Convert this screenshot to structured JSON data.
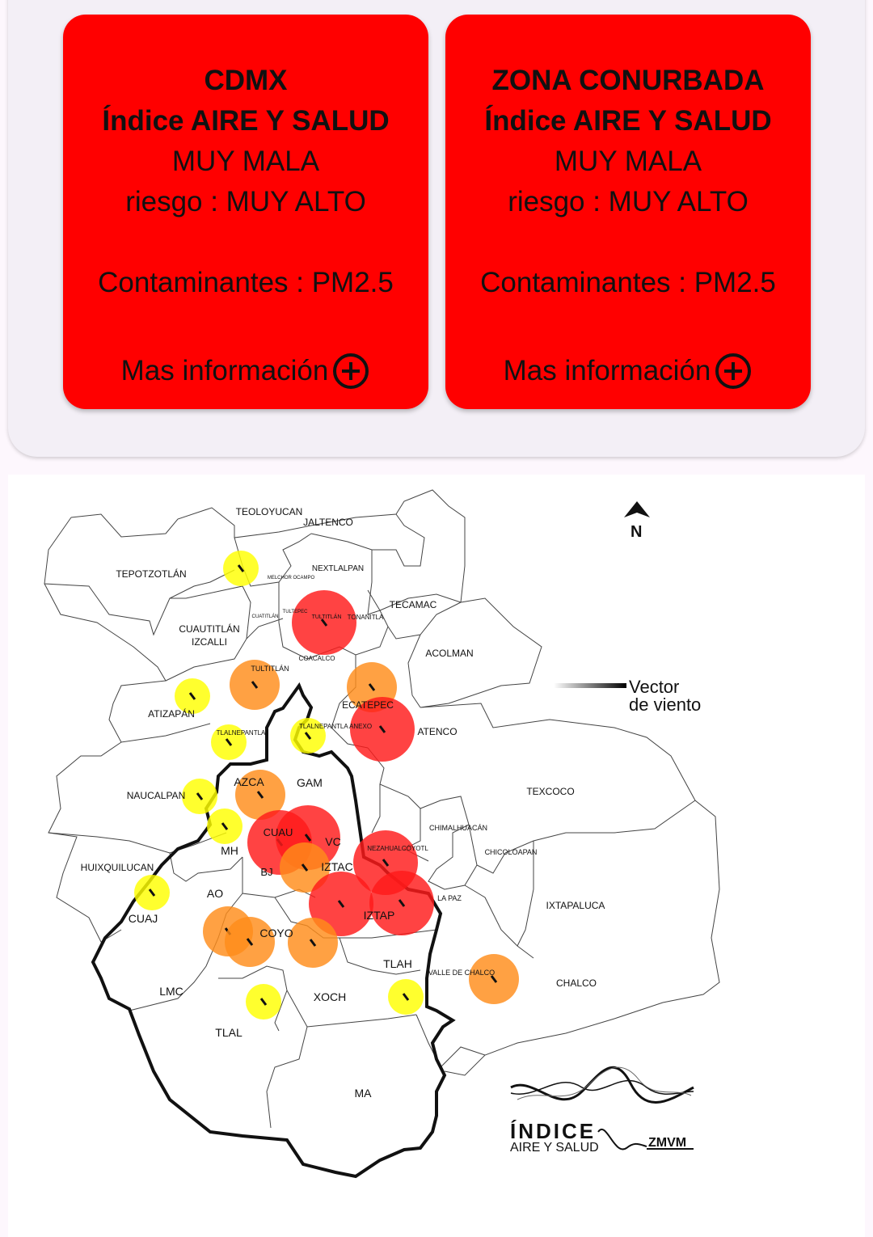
{
  "cards": [
    {
      "region": "CDMX",
      "index_name": "Índice AIRE Y SALUD",
      "quality": "MUY MALA",
      "risk": "riesgo : MUY ALTO",
      "pollutants": "Contaminantes : PM2.5",
      "more_label": "Mas información",
      "color": "#ff0000"
    },
    {
      "region": "ZONA CONURBADA",
      "index_name": "Índice AIRE Y SALUD",
      "quality": "MUY MALA",
      "risk": "riesgo : MUY ALTO",
      "pollutants": "Contaminantes : PM2.5",
      "more_label": "Mas información",
      "color": "#ff0000"
    }
  ],
  "map": {
    "north_label": "N",
    "wind_legend": [
      "Vector",
      "de viento"
    ],
    "logo": {
      "line1": "ÍNDICE",
      "line2": "AIRE Y SALUD",
      "line3": "ZMVM"
    },
    "colors": {
      "very_bad": "#ff1a1a",
      "bad": "#ff8c1a",
      "regular": "#ffff00"
    },
    "labels": {
      "teoloyucan": "TEOLOYUCAN",
      "jaltenco": "JALTENCO",
      "tepotzotlan": "TEPOTZOTLÁN",
      "nextlalpan": "NEXTLALPAN",
      "melchor": "MELCHOR OCAMPO",
      "tecamac": "TECAMAC",
      "cuautitlan_izcalli_1": "CUAUTITLÁN",
      "cuautitlan_izcalli_2": "IZCALLI",
      "cuautitlan": "CUATITLÁN",
      "tultepec": "TULTEPEC",
      "tultitlan": "TULTITLÁN",
      "tonanitla": "TONANITLA",
      "acolman": "ACOLMAN",
      "coacalco": "COACALCO",
      "tultitlan2": "TULTITLÁN",
      "ecatepec": "ECATEPEC",
      "atizapan": "ATIZAPÁN",
      "tlalnepantla": "TLALNEPANTLA",
      "tlalnepantla_anexo": "TLALNEPANTLA ANEXO",
      "atenco": "ATENCO",
      "azca": "AZCA",
      "gam": "GAM",
      "texcoco": "TEXCOCO",
      "naucalpan": "NAUCALPAN",
      "chimalhuacan": "CHIMALHUACÁN",
      "cuau": "CUAU",
      "vc": "VC",
      "nezahualcoyotl": "NEZAHUALCÓYOTL",
      "chicoloapan": "CHICOLOAPAN",
      "mh": "MH",
      "huixquilucan": "HUIXQUILUCAN",
      "bj": "BJ",
      "iztac": "IZTAC",
      "ao": "AO",
      "la_paz": "LA PAZ",
      "ixtapaluca": "IXTAPALUCA",
      "iztap": "IZTAP",
      "cuaj": "CUAJ",
      "coyo": "COYO",
      "tlah": "TLAH",
      "valle_chalco": "VALLE DE CHALCO",
      "chalco": "CHALCO",
      "lmc": "LMC",
      "xoch": "XOCH",
      "tlal": "TLAL",
      "ma": "MA"
    },
    "stations": [
      {
        "id": "tepotzotlan",
        "level": "regular"
      },
      {
        "id": "tultitlan",
        "level": "very_bad"
      },
      {
        "id": "tultitlan-sur",
        "level": "bad"
      },
      {
        "id": "ecatepec-norte",
        "level": "bad"
      },
      {
        "id": "ecatepec",
        "level": "very_bad"
      },
      {
        "id": "atizapan",
        "level": "regular"
      },
      {
        "id": "tlalnepantla",
        "level": "regular"
      },
      {
        "id": "tlalnepantla-anexo",
        "level": "regular"
      },
      {
        "id": "azca",
        "level": "bad"
      },
      {
        "id": "naucalpan",
        "level": "regular"
      },
      {
        "id": "fes-acatlan",
        "level": "regular"
      },
      {
        "id": "cuauhtemoc",
        "level": "very_bad"
      },
      {
        "id": "vc",
        "level": "very_bad"
      },
      {
        "id": "nezahualcoyotl",
        "level": "very_bad"
      },
      {
        "id": "bj",
        "level": "bad"
      },
      {
        "id": "iztacalco",
        "level": "very_bad"
      },
      {
        "id": "iztapalapa",
        "level": "very_bad"
      },
      {
        "id": "cuajimalpa",
        "level": "regular"
      },
      {
        "id": "ao",
        "level": "bad"
      },
      {
        "id": "coyoacan",
        "level": "bad"
      },
      {
        "id": "coyoacan-este",
        "level": "bad"
      },
      {
        "id": "chalco",
        "level": "bad"
      },
      {
        "id": "tlalpan",
        "level": "regular"
      },
      {
        "id": "tlahuac",
        "level": "regular"
      }
    ]
  }
}
